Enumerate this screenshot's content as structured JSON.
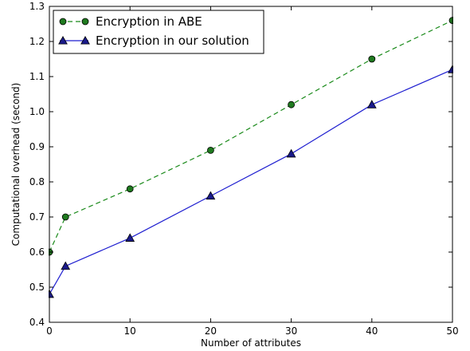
{
  "chart_data": {
    "type": "line",
    "title": "",
    "xlabel": "Number of attributes",
    "ylabel": "Computational overhead (second)",
    "xlim": [
      0,
      50
    ],
    "ylim": [
      0.4,
      1.3
    ],
    "xticks": [
      0,
      10,
      20,
      30,
      40,
      50
    ],
    "yticks": [
      0.4,
      0.5,
      0.6,
      0.7,
      0.8,
      0.9,
      1.0,
      1.1,
      1.2,
      1.3
    ],
    "xtick_labels": [
      "0",
      "10",
      "20",
      "30",
      "40",
      "50"
    ],
    "ytick_labels": [
      "0.4",
      "0.5",
      "0.6",
      "0.7",
      "0.8",
      "0.9",
      "1.0",
      "1.1",
      "1.2",
      "1.3"
    ],
    "grid": false,
    "legend_position": "top-left",
    "series": [
      {
        "name": "Encryption in ABE",
        "x": [
          0,
          2,
          10,
          20,
          30,
          40,
          50
        ],
        "values": [
          0.6,
          0.7,
          0.78,
          0.89,
          1.02,
          1.15,
          1.26
        ],
        "color": "#1a8a1a",
        "marker_fill": "#1f7a1f",
        "line_style": "dashed",
        "marker": "circle"
      },
      {
        "name": "Encryption in our solution",
        "x": [
          0,
          2,
          10,
          20,
          30,
          40,
          50
        ],
        "values": [
          0.48,
          0.56,
          0.64,
          0.76,
          0.88,
          1.02,
          1.12
        ],
        "color": "#1f1fd0",
        "marker_fill": "#1a1a8a",
        "line_style": "solid",
        "marker": "triangle"
      }
    ]
  }
}
